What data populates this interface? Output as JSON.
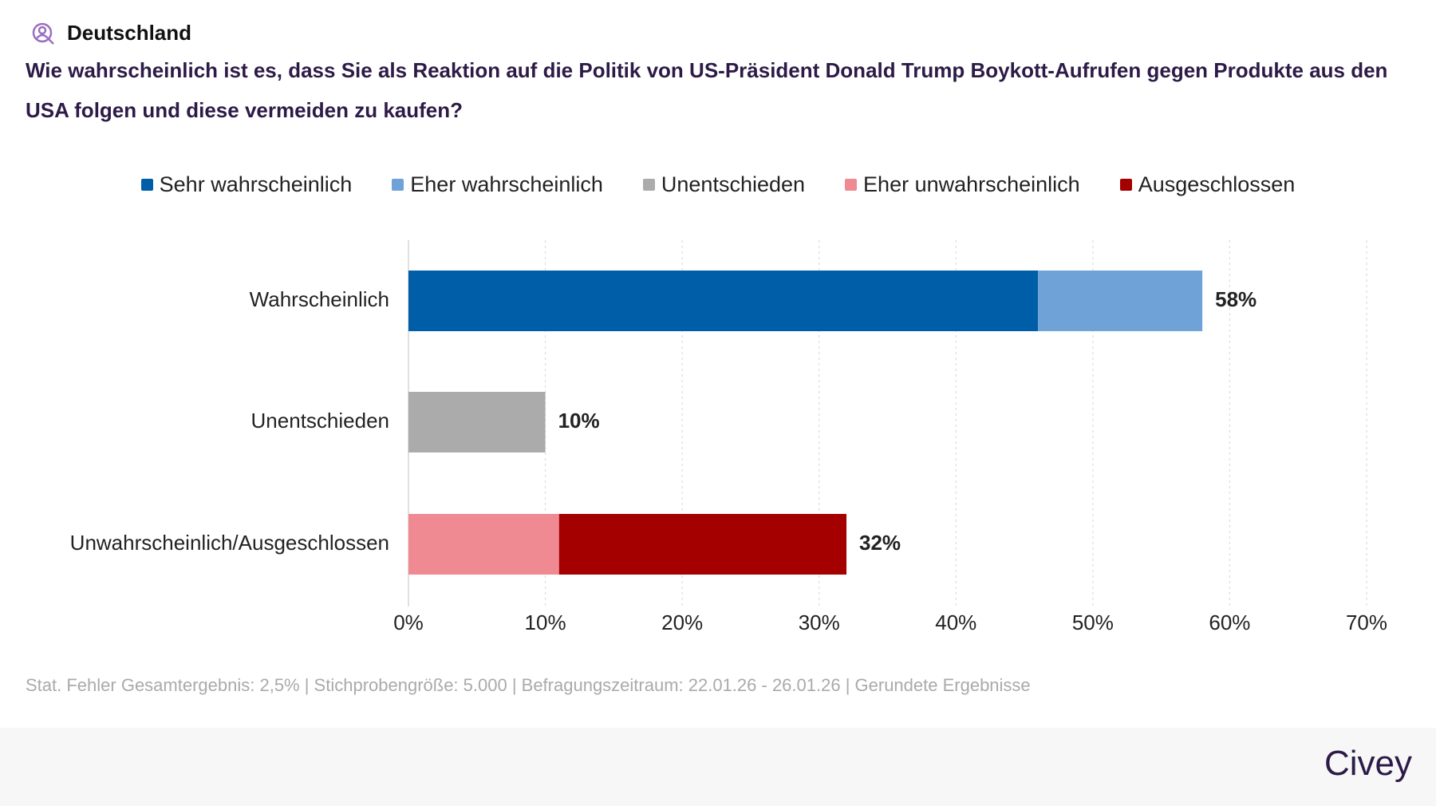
{
  "chart_data": {
    "type": "stacked-bar-horizontal",
    "region": "Deutschland",
    "title": "Wie wahrscheinlich ist es, dass Sie als Reaktion auf die Politik von US-Präsident Donald Trump Boykott-Aufrufen gegen Produkte aus den USA folgen und diese vermeiden zu kaufen?",
    "categories": [
      "Wahrscheinlich",
      "Unentschieden",
      "Unwahrscheinlich/Ausgeschlossen"
    ],
    "series": [
      {
        "name": "Sehr wahrscheinlich",
        "color": "#005ea8",
        "values": [
          46,
          null,
          null
        ]
      },
      {
        "name": "Eher wahrscheinlich",
        "color": "#6fa2d6",
        "values": [
          12,
          null,
          null
        ]
      },
      {
        "name": "Unentschieden",
        "color": "#ababab",
        "values": [
          null,
          10,
          null
        ]
      },
      {
        "name": "Eher unwahrscheinlich",
        "color": "#f08a92",
        "values": [
          null,
          null,
          11
        ]
      },
      {
        "name": "Ausgeschlossen",
        "color": "#a50000",
        "values": [
          null,
          null,
          21
        ]
      }
    ],
    "totals": [
      58,
      10,
      32
    ],
    "total_labels": [
      "58%",
      "10%",
      "32%"
    ],
    "xlim": [
      0,
      70
    ],
    "xticks": [
      {
        "value": 0,
        "label": "0%"
      },
      {
        "value": 10,
        "label": "10%"
      },
      {
        "value": 20,
        "label": "20%"
      },
      {
        "value": 30,
        "label": "30%"
      },
      {
        "value": 40,
        "label": "40%"
      },
      {
        "value": 50,
        "label": "50%"
      },
      {
        "value": 60,
        "label": "60%"
      },
      {
        "value": 70,
        "label": "70%"
      }
    ],
    "grid": true,
    "note": "Stat. Fehler Gesamtergebnis: 2,5% | Stichprobengröße: 5.000 | Befragungszeitraum: 22.01.26 - 26.01.26 | Gerundete Ergebnisse",
    "brand": "Civey"
  }
}
